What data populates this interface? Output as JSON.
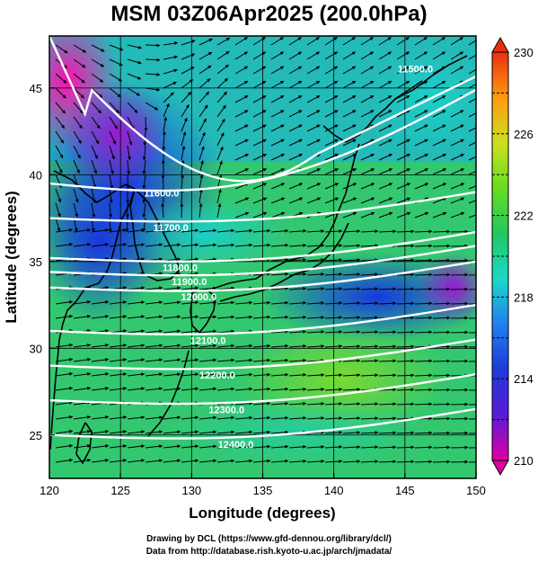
{
  "title": "MSM 03Z06Apr2025 (200.0hPa)",
  "chart_data": {
    "type": "map",
    "title": "MSM 03Z06Apr2025 (200.0hPa)",
    "xlabel": "Longitude (degrees)",
    "ylabel": "Latitude  (degrees)",
    "xlim": [
      120,
      150
    ],
    "ylim": [
      22.5,
      48
    ],
    "xticks": [
      120,
      125,
      130,
      135,
      140,
      145,
      150
    ],
    "yticks": [
      25,
      30,
      35,
      40,
      45
    ],
    "colorbar": {
      "min": 210,
      "max": 230,
      "ticks": [
        210,
        214,
        218,
        222,
        226,
        230
      ],
      "colors": [
        "#e000a0",
        "#5a1ad8",
        "#1e3ad8",
        "#2080ee",
        "#1cd8c8",
        "#20c860",
        "#66dd20",
        "#cce020",
        "#ff9a10",
        "#e83010"
      ]
    },
    "contours": [
      {
        "label": "11500.0",
        "lat": 46.5
      },
      {
        "label": "11600.0",
        "lat": 39.5
      },
      {
        "label": "11700.0",
        "lat": 37.5
      },
      {
        "label": "11800.0",
        "lat": 35.2
      },
      {
        "label": "11900.0",
        "lat": 34.4
      },
      {
        "label": "12000.0",
        "lat": 33.5
      },
      {
        "label": "12100.0",
        "lat": 31.0
      },
      {
        "label": "12200.0",
        "lat": 29.0
      },
      {
        "label": "12300.0",
        "lat": 27.0
      },
      {
        "label": "12400.0",
        "lat": 25.0
      }
    ],
    "contour_labels": [
      "11500.0",
      "11600.0",
      "11700.0",
      "11800.0",
      "11900.0",
      "12000.0",
      "12100.0",
      "12200.0",
      "12300.0",
      "12400.0"
    ]
  },
  "credits": {
    "line1": "Drawing by DCL (https://www.gfd-dennou.org/library/dcl/)",
    "line2": "Data from http://database.rish.kyoto-u.ac.jp/arch/jmadata/"
  }
}
